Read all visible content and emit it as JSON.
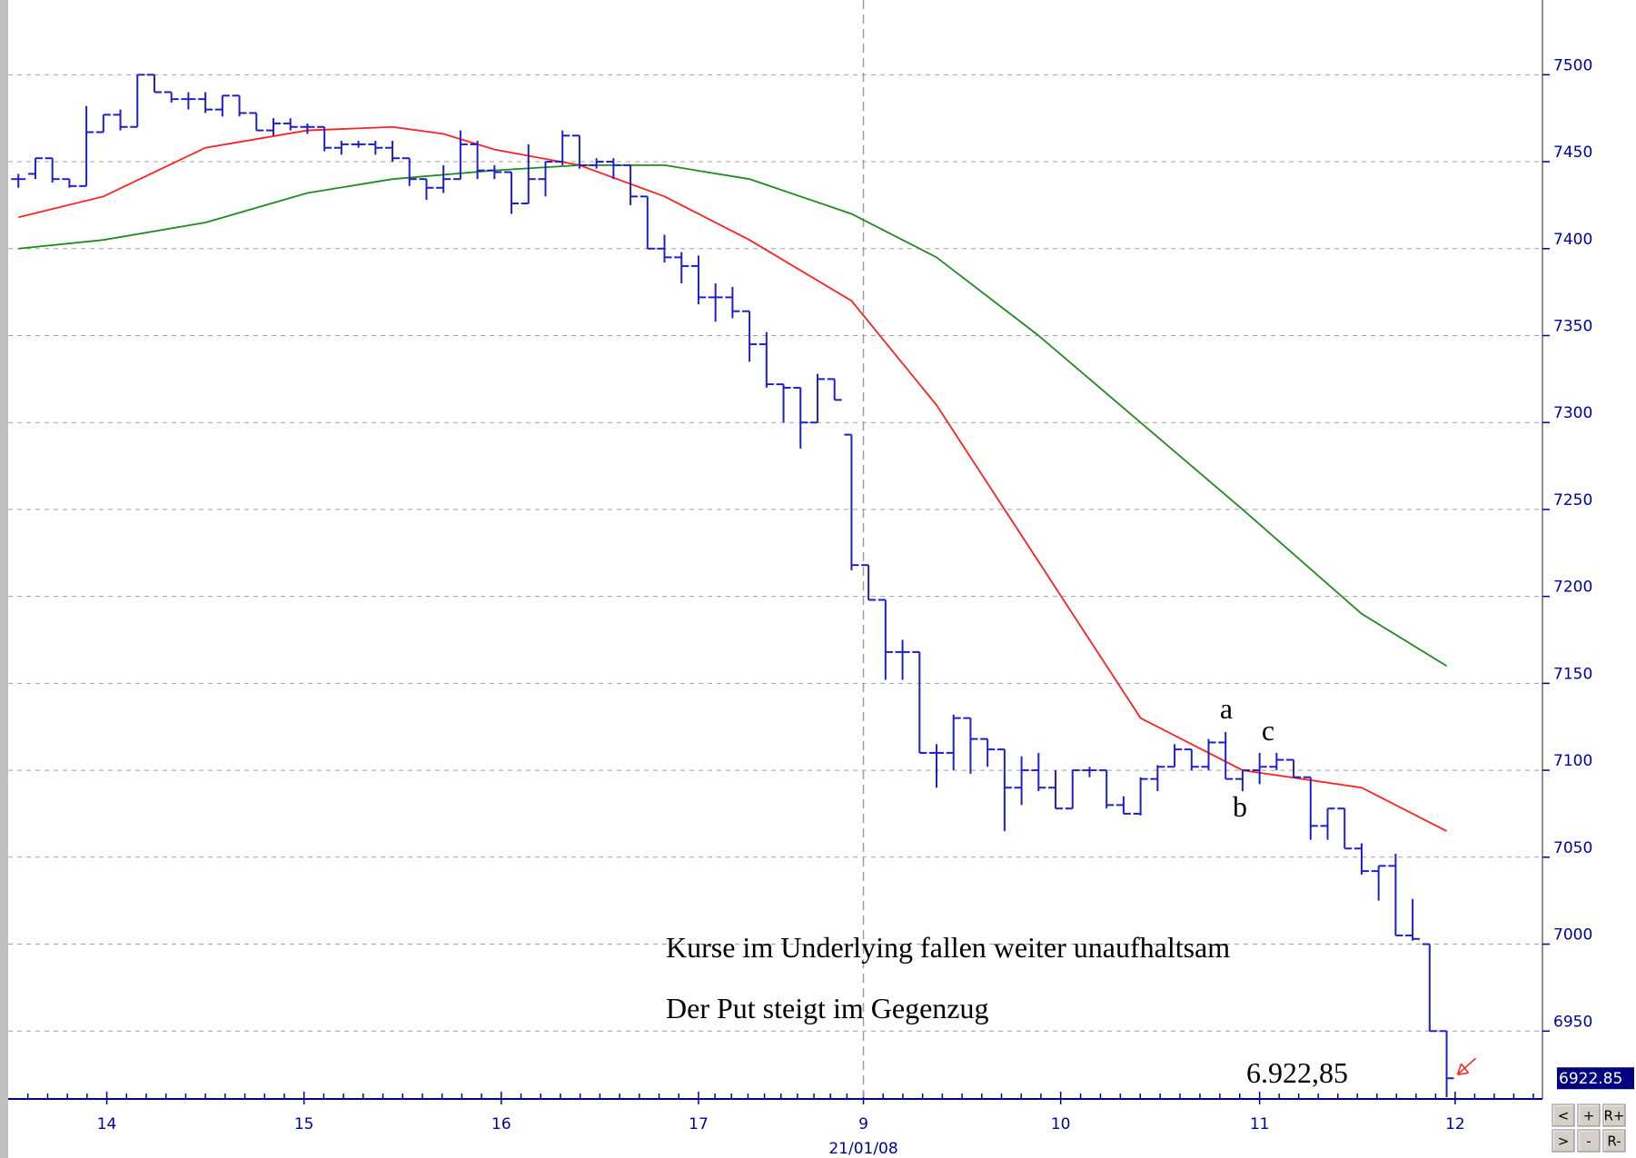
{
  "chart_data": {
    "type": "ohlc",
    "bars": {
      "color": "#2020c8",
      "open": [
        7440,
        7443,
        7452,
        7440,
        7436,
        7467,
        7477,
        7470,
        7500,
        7490,
        7486,
        7486,
        7480,
        7488,
        7478,
        7468,
        7472,
        7470,
        7470,
        7458,
        7460,
        7460,
        7458,
        7452,
        7440,
        7435,
        7440,
        7460,
        7445,
        7444,
        7426,
        7440,
        7450,
        7465,
        7448,
        7450,
        7448,
        7430,
        7400,
        7395,
        7390,
        7372,
        7372,
        7364,
        7345,
        7322,
        7320,
        7300,
        7325,
        7293,
        7218,
        7198,
        7168,
        7168,
        7110,
        7110,
        7130,
        7118,
        7112,
        7090,
        7100,
        7090,
        7078,
        7100,
        7100,
        7080,
        7075,
        7095,
        7102,
        7112,
        7102,
        7116,
        7095,
        7100,
        7102,
        7106,
        7096,
        7068,
        7078,
        7055,
        7042,
        7045,
        7005,
        7000,
        6950
      ],
      "high": [
        7443,
        7452,
        7452,
        7440,
        7482,
        7477,
        7480,
        7500,
        7500,
        7490,
        7490,
        7490,
        7488,
        7488,
        7478,
        7475,
        7475,
        7472,
        7470,
        7462,
        7462,
        7462,
        7462,
        7452,
        7440,
        7448,
        7468,
        7462,
        7448,
        7444,
        7460,
        7450,
        7468,
        7465,
        7452,
        7452,
        7448,
        7430,
        7408,
        7398,
        7396,
        7380,
        7378,
        7364,
        7352,
        7322,
        7320,
        7328,
        7325,
        7293,
        7218,
        7198,
        7175,
        7168,
        7115,
        7132,
        7130,
        7118,
        7112,
        7108,
        7110,
        7100,
        7100,
        7102,
        7100,
        7085,
        7096,
        7103,
        7115,
        7112,
        7118,
        7122,
        7100,
        7110,
        7110,
        7106,
        7096,
        7078,
        7078,
        7058,
        7045,
        7052,
        7026,
        7000,
        6950
      ],
      "low": [
        7435,
        7440,
        7438,
        7435,
        7436,
        7467,
        7468,
        7470,
        7490,
        7484,
        7480,
        7478,
        7476,
        7476,
        7468,
        7465,
        7468,
        7466,
        7456,
        7454,
        7458,
        7454,
        7450,
        7436,
        7428,
        7432,
        7440,
        7440,
        7440,
        7420,
        7426,
        7430,
        7448,
        7446,
        7446,
        7440,
        7425,
        7400,
        7392,
        7380,
        7368,
        7358,
        7360,
        7335,
        7320,
        7300,
        7285,
        7300,
        7313,
        7215,
        7198,
        7152,
        7152,
        7110,
        7090,
        7100,
        7098,
        7102,
        7065,
        7080,
        7088,
        7078,
        7078,
        7096,
        7078,
        7075,
        7074,
        7088,
        7102,
        7100,
        7100,
        7095,
        7088,
        7092,
        7100,
        7096,
        7060,
        7060,
        7055,
        7040,
        7025,
        7005,
        7002,
        6950,
        6912
      ],
      "close": [
        7440,
        7452,
        7440,
        7436,
        7467,
        7477,
        7470,
        7500,
        7490,
        7486,
        7486,
        7480,
        7488,
        7478,
        7468,
        7472,
        7470,
        7470,
        7458,
        7460,
        7460,
        7458,
        7452,
        7440,
        7435,
        7440,
        7460,
        7445,
        7444,
        7426,
        7440,
        7450,
        7465,
        7448,
        7450,
        7448,
        7430,
        7400,
        7395,
        7390,
        7372,
        7372,
        7364,
        7345,
        7322,
        7320,
        7300,
        7325,
        7313,
        7218,
        7198,
        7168,
        7168,
        7110,
        7110,
        7130,
        7118,
        7112,
        7090,
        7100,
        7090,
        7078,
        7100,
        7100,
        7080,
        7075,
        7095,
        7102,
        7112,
        7102,
        7116,
        7095,
        7100,
        7102,
        7106,
        7096,
        7068,
        7078,
        7055,
        7042,
        7045,
        7005,
        7003,
        6950,
        6922.85
      ]
    },
    "series": [
      {
        "color": "#ff2020",
        "x": [
          0,
          5,
          11,
          17,
          22,
          25,
          28,
          33,
          38,
          43,
          49,
          54,
          60,
          66,
          72,
          79,
          84
        ],
        "values": [
          7418,
          7430,
          7458,
          7468,
          7470,
          7466,
          7457,
          7448,
          7430,
          7405,
          7370,
          7310,
          7220,
          7130,
          7100,
          7090,
          7065
        ]
      },
      {
        "color": "#208a20",
        "x": [
          0,
          5,
          11,
          17,
          22,
          28,
          33,
          38,
          43,
          49,
          54,
          60,
          66,
          72,
          79,
          84
        ],
        "values": [
          7400,
          7405,
          7415,
          7432,
          7440,
          7445,
          7448,
          7448,
          7440,
          7420,
          7395,
          7350,
          7300,
          7250,
          7190,
          7160
        ]
      }
    ],
    "xlim": [
      -0.6,
      89.1
    ],
    "xticks": [
      {
        "value": 5.2,
        "label": "14"
      },
      {
        "value": 16.8,
        "label": "15"
      },
      {
        "value": 28.4,
        "label": "16"
      },
      {
        "value": 40.0,
        "label": "17"
      },
      {
        "value": 49.7,
        "label": "9"
      },
      {
        "value": 61.3,
        "label": "10"
      },
      {
        "value": 73.0,
        "label": "11"
      },
      {
        "value": 84.5,
        "label": "12"
      }
    ],
    "date_label": "21/01/08",
    "ylim": [
      6912,
      7543
    ],
    "yticks": [
      6950,
      7000,
      7050,
      7100,
      7150,
      7200,
      7250,
      7300,
      7350,
      7400,
      7450,
      7500
    ],
    "grid": true,
    "last_price": 6922.85,
    "annotations": [
      "a",
      "b",
      "c",
      "Kurse im Underlying fallen weiter unaufhaltsam",
      "Der Put steigt im Gegenzug",
      "6.922,85"
    ],
    "buttons": [
      "<",
      "+",
      "R+",
      ">",
      "-",
      "R-"
    ]
  }
}
